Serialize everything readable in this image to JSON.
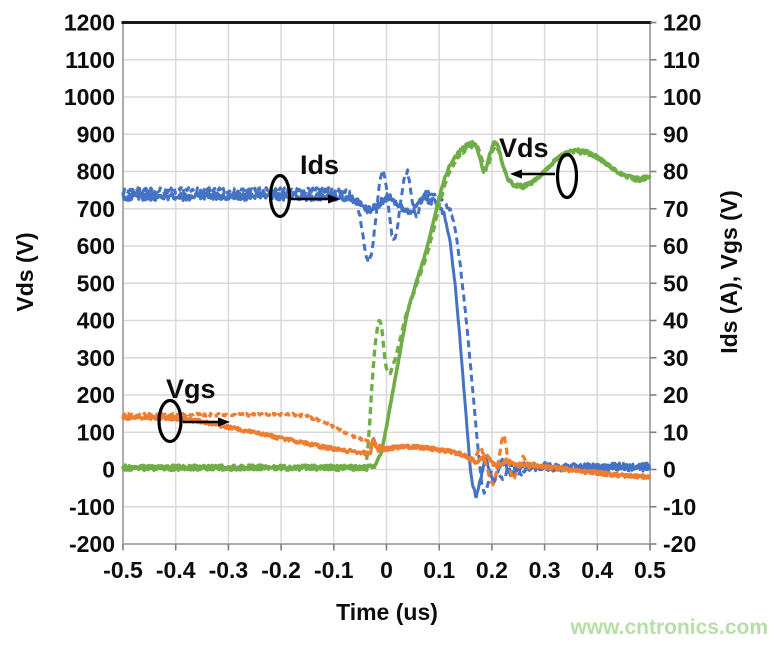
{
  "watermark": "www.cntronics.com",
  "chart_data": {
    "type": "line",
    "title": "",
    "xlabel": "Time (us)",
    "ylabel_left": "Vds (V)",
    "ylabel_right": "Ids (A), Vgs (V)",
    "x_range": [
      -0.5,
      0.5
    ],
    "y_left_range": [
      -200,
      1200
    ],
    "y_right_range": [
      -20,
      120
    ],
    "grid": true,
    "legend": "none",
    "x_ticks": [
      "-0.5",
      "-0.4",
      "-0.3",
      "-0.2",
      "-0.1",
      "0",
      "0.1",
      "0.2",
      "0.3",
      "0.4",
      "0.5"
    ],
    "y_left_ticks": [
      "1200",
      "1100",
      "1000",
      "900",
      "800",
      "700",
      "600",
      "500",
      "400",
      "300",
      "200",
      "100",
      "0",
      "-100",
      "-200"
    ],
    "y_right_ticks": [
      "120",
      "110",
      "100",
      "90",
      "80",
      "70",
      "60",
      "50",
      "40",
      "30",
      "20",
      "10",
      "0",
      "-10",
      "-20"
    ],
    "annotations": {
      "ids": {
        "label": "Ids"
      },
      "vds": {
        "label": "Vds"
      },
      "vgs": {
        "label": "Vgs"
      }
    },
    "series": [
      {
        "id": "ids-dashed",
        "name": "Ids (dashed)",
        "axis": "right",
        "color": "#4472C4",
        "dashed": true,
        "width": 3,
        "noise": 0.9,
        "points": [
          [
            -0.5,
            74.8
          ],
          [
            -0.08,
            74.8
          ],
          [
            -0.06,
            73
          ],
          [
            -0.05,
            68
          ],
          [
            -0.04,
            58
          ],
          [
            -0.033,
            55.5
          ],
          [
            -0.027,
            59
          ],
          [
            -0.02,
            68
          ],
          [
            -0.013,
            77
          ],
          [
            -0.007,
            80.5
          ],
          [
            0,
            76
          ],
          [
            0.005,
            69
          ],
          [
            0.01,
            63
          ],
          [
            0.015,
            61.5
          ],
          [
            0.02,
            64
          ],
          [
            0.025,
            70
          ],
          [
            0.03,
            75
          ],
          [
            0.035,
            79
          ],
          [
            0.04,
            80
          ],
          [
            0.045,
            76
          ],
          [
            0.05,
            71
          ],
          [
            0.055,
            68
          ],
          [
            0.06,
            69
          ],
          [
            0.065,
            71.5
          ],
          [
            0.07,
            73.5
          ],
          [
            0.08,
            74.5
          ],
          [
            0.09,
            73.5
          ],
          [
            0.1,
            72.5
          ],
          [
            0.11,
            71.5
          ],
          [
            0.12,
            70
          ],
          [
            0.13,
            65
          ],
          [
            0.14,
            55
          ],
          [
            0.15,
            42
          ],
          [
            0.16,
            27
          ],
          [
            0.17,
            11
          ],
          [
            0.18,
            -3
          ],
          [
            0.186,
            -6.5
          ],
          [
            0.19,
            -5.5
          ],
          [
            0.197,
            -1.5
          ],
          [
            0.203,
            2
          ],
          [
            0.21,
            1
          ],
          [
            0.217,
            -2.5
          ],
          [
            0.223,
            -3
          ],
          [
            0.23,
            0
          ],
          [
            0.237,
            1.5
          ],
          [
            0.245,
            0
          ],
          [
            0.252,
            -1.5
          ],
          [
            0.26,
            0
          ],
          [
            0.27,
            0.8
          ],
          [
            0.28,
            0.2
          ],
          [
            0.3,
            0.5
          ],
          [
            0.35,
            0.6
          ],
          [
            0.4,
            0.5
          ],
          [
            0.45,
            0.7
          ],
          [
            0.5,
            0.8
          ]
        ]
      },
      {
        "id": "ids-solid",
        "name": "Ids (solid)",
        "axis": "right",
        "color": "#4472C4",
        "dashed": false,
        "width": 3,
        "noise": 1.1,
        "points": [
          [
            -0.5,
            73.3
          ],
          [
            -0.1,
            73.3
          ],
          [
            -0.07,
            73
          ],
          [
            -0.05,
            71.5
          ],
          [
            -0.035,
            69.5
          ],
          [
            -0.02,
            70.5
          ],
          [
            -0.005,
            72.5
          ],
          [
            0.005,
            73.5
          ],
          [
            0.02,
            71.5
          ],
          [
            0.035,
            69.5
          ],
          [
            0.05,
            69.5
          ],
          [
            0.06,
            71.5
          ],
          [
            0.07,
            73
          ],
          [
            0.085,
            72
          ],
          [
            0.1,
            71
          ],
          [
            0.11,
            68.5
          ],
          [
            0.12,
            62
          ],
          [
            0.13,
            50
          ],
          [
            0.14,
            34
          ],
          [
            0.15,
            16
          ],
          [
            0.16,
            -1
          ],
          [
            0.165,
            -5.5
          ],
          [
            0.17,
            -7
          ],
          [
            0.178,
            -3
          ],
          [
            0.185,
            1.5
          ],
          [
            0.19,
            2.5
          ],
          [
            0.197,
            -1
          ],
          [
            0.203,
            -3.5
          ],
          [
            0.21,
            -1
          ],
          [
            0.217,
            1.5
          ],
          [
            0.224,
            2
          ],
          [
            0.232,
            -0.5
          ],
          [
            0.24,
            -1
          ],
          [
            0.25,
            0.5
          ],
          [
            0.26,
            1
          ],
          [
            0.28,
            0.3
          ],
          [
            0.3,
            0.8
          ],
          [
            0.33,
            0.4
          ],
          [
            0.36,
            0.8
          ],
          [
            0.4,
            0.5
          ],
          [
            0.44,
            0.8
          ],
          [
            0.47,
            0.4
          ],
          [
            0.5,
            0.7
          ]
        ]
      },
      {
        "id": "vds-dashed",
        "name": "Vds (dashed)",
        "axis": "left",
        "color": "#70AD47",
        "dashed": true,
        "width": 3.4,
        "noise": 6,
        "points": [
          [
            -0.5,
            5
          ],
          [
            -0.042,
            5
          ],
          [
            -0.037,
            30
          ],
          [
            -0.032,
            120
          ],
          [
            -0.027,
            240
          ],
          [
            -0.022,
            330
          ],
          [
            -0.017,
            385
          ],
          [
            -0.013,
            402
          ],
          [
            -0.009,
            380
          ],
          [
            -0.005,
            320
          ],
          [
            -0.001,
            275
          ],
          [
            0.003,
            258
          ],
          [
            0.008,
            262
          ],
          [
            0.013,
            280
          ],
          [
            0.02,
            315
          ],
          [
            0.03,
            375
          ],
          [
            0.04,
            430
          ],
          [
            0.05,
            465
          ],
          [
            0.06,
            508
          ],
          [
            0.07,
            548
          ],
          [
            0.08,
            592
          ],
          [
            0.09,
            648
          ],
          [
            0.1,
            708
          ],
          [
            0.11,
            762
          ],
          [
            0.12,
            800
          ],
          [
            0.13,
            826
          ],
          [
            0.14,
            846
          ],
          [
            0.15,
            858
          ],
          [
            0.16,
            868
          ],
          [
            0.17,
            872
          ],
          [
            0.176,
            858
          ],
          [
            0.182,
            828
          ],
          [
            0.188,
            804
          ],
          [
            0.194,
            818
          ],
          [
            0.2,
            850
          ],
          [
            0.206,
            870
          ],
          [
            0.212,
            860
          ],
          [
            0.22,
            820
          ],
          [
            0.23,
            780
          ],
          [
            0.24,
            766
          ],
          [
            0.25,
            760
          ],
          [
            0.26,
            761
          ],
          [
            0.27,
            766
          ],
          [
            0.28,
            774
          ],
          [
            0.3,
            800
          ],
          [
            0.32,
            830
          ],
          [
            0.34,
            848
          ],
          [
            0.36,
            855
          ],
          [
            0.38,
            851
          ],
          [
            0.4,
            838
          ],
          [
            0.42,
            818
          ],
          [
            0.44,
            798
          ],
          [
            0.46,
            784
          ],
          [
            0.48,
            778
          ],
          [
            0.5,
            788
          ]
        ]
      },
      {
        "id": "vds-solid",
        "name": "Vds (solid)",
        "axis": "left",
        "color": "#70AD47",
        "dashed": false,
        "width": 3.6,
        "noise": 7,
        "points": [
          [
            -0.5,
            5
          ],
          [
            -0.03,
            5
          ],
          [
            -0.022,
            12
          ],
          [
            -0.01,
            45
          ],
          [
            0,
            115
          ],
          [
            0.01,
            195
          ],
          [
            0.02,
            270
          ],
          [
            0.03,
            350
          ],
          [
            0.04,
            425
          ],
          [
            0.05,
            472
          ],
          [
            0.06,
            520
          ],
          [
            0.07,
            562
          ],
          [
            0.08,
            612
          ],
          [
            0.09,
            670
          ],
          [
            0.1,
            730
          ],
          [
            0.11,
            780
          ],
          [
            0.12,
            815
          ],
          [
            0.13,
            840
          ],
          [
            0.14,
            856
          ],
          [
            0.15,
            868
          ],
          [
            0.16,
            876
          ],
          [
            0.166,
            878
          ],
          [
            0.172,
            862
          ],
          [
            0.178,
            832
          ],
          [
            0.184,
            800
          ],
          [
            0.19,
            812
          ],
          [
            0.196,
            846
          ],
          [
            0.202,
            872
          ],
          [
            0.207,
            878
          ],
          [
            0.213,
            862
          ],
          [
            0.22,
            822
          ],
          [
            0.23,
            780
          ],
          [
            0.24,
            766
          ],
          [
            0.25,
            760
          ],
          [
            0.26,
            760
          ],
          [
            0.27,
            766
          ],
          [
            0.28,
            774
          ],
          [
            0.3,
            800
          ],
          [
            0.32,
            830
          ],
          [
            0.34,
            848
          ],
          [
            0.36,
            855
          ],
          [
            0.38,
            851
          ],
          [
            0.4,
            838
          ],
          [
            0.42,
            818
          ],
          [
            0.44,
            798
          ],
          [
            0.46,
            784
          ],
          [
            0.48,
            778
          ],
          [
            0.5,
            788
          ]
        ]
      },
      {
        "id": "vgs-dashed",
        "name": "Vgs (dashed)",
        "axis": "right",
        "color": "#ED7D31",
        "dashed": true,
        "width": 3.2,
        "noise": 0.4,
        "points": [
          [
            -0.5,
            14.7
          ],
          [
            -0.17,
            14.7
          ],
          [
            -0.15,
            14.3
          ],
          [
            -0.12,
            12.8
          ],
          [
            -0.1,
            11.4
          ],
          [
            -0.08,
            10
          ],
          [
            -0.06,
            8.8
          ],
          [
            -0.04,
            7.6
          ],
          [
            -0.02,
            6.6
          ],
          [
            0,
            5.9
          ],
          [
            0.03,
            6.2
          ],
          [
            0.06,
            6.1
          ],
          [
            0.09,
            5.6
          ],
          [
            0.11,
            5.1
          ],
          [
            0.13,
            4.6
          ],
          [
            0.15,
            3.6
          ],
          [
            0.16,
            2.6
          ],
          [
            0.17,
            3.8
          ],
          [
            0.178,
            6.2
          ],
          [
            0.184,
            4
          ],
          [
            0.19,
            0.8
          ],
          [
            0.196,
            -2.2
          ],
          [
            0.202,
            -4.2
          ],
          [
            0.208,
            -1
          ],
          [
            0.214,
            3.5
          ],
          [
            0.219,
            8
          ],
          [
            0.2225,
            9.6
          ],
          [
            0.227,
            6
          ],
          [
            0.232,
            1.5
          ],
          [
            0.237,
            -1.5
          ],
          [
            0.242,
            -2.6
          ],
          [
            0.248,
            -0.5
          ],
          [
            0.254,
            2
          ],
          [
            0.259,
            3.4
          ],
          [
            0.265,
            2
          ],
          [
            0.272,
            0.4
          ],
          [
            0.28,
            1.4
          ],
          [
            0.29,
            0.9
          ],
          [
            0.3,
            0.6
          ],
          [
            0.33,
            0
          ],
          [
            0.37,
            -0.6
          ],
          [
            0.4,
            -1.1
          ],
          [
            0.44,
            -1.6
          ],
          [
            0.47,
            -1.9
          ],
          [
            0.5,
            -2.2
          ]
        ]
      },
      {
        "id": "vgs-solid",
        "name": "Vgs (solid)",
        "axis": "right",
        "color": "#ED7D31",
        "dashed": false,
        "width": 3.4,
        "noise": 0.5,
        "points": [
          [
            -0.5,
            13.9
          ],
          [
            -0.42,
            13.9
          ],
          [
            -0.38,
            13.5
          ],
          [
            -0.33,
            12.3
          ],
          [
            -0.28,
            10.8
          ],
          [
            -0.23,
            9.3
          ],
          [
            -0.18,
            7.8
          ],
          [
            -0.13,
            6.3
          ],
          [
            -0.09,
            5.3
          ],
          [
            -0.06,
            4.7
          ],
          [
            -0.04,
            4.4
          ],
          [
            -0.03,
            4.6
          ],
          [
            -0.027,
            7.5
          ],
          [
            -0.024,
            8.6
          ],
          [
            -0.021,
            6
          ],
          [
            -0.015,
            5.2
          ],
          [
            0,
            5.5
          ],
          [
            0.02,
            5.9
          ],
          [
            0.05,
            6.1
          ],
          [
            0.08,
            5.8
          ],
          [
            0.1,
            5.2
          ],
          [
            0.12,
            4.8
          ],
          [
            0.14,
            4.2
          ],
          [
            0.16,
            3
          ],
          [
            0.17,
            1.8
          ],
          [
            0.18,
            2.8
          ],
          [
            0.19,
            3.6
          ],
          [
            0.2,
            2
          ],
          [
            0.21,
            0.6
          ],
          [
            0.22,
            1.8
          ],
          [
            0.23,
            2.6
          ],
          [
            0.24,
            1.4
          ],
          [
            0.25,
            1
          ],
          [
            0.26,
            1.6
          ],
          [
            0.27,
            1.2
          ],
          [
            0.29,
            1
          ],
          [
            0.31,
            0.6
          ],
          [
            0.34,
            0.1
          ],
          [
            0.37,
            -0.4
          ],
          [
            0.4,
            -0.9
          ],
          [
            0.43,
            -1.4
          ],
          [
            0.46,
            -1.7
          ],
          [
            0.5,
            -2
          ]
        ]
      }
    ]
  }
}
